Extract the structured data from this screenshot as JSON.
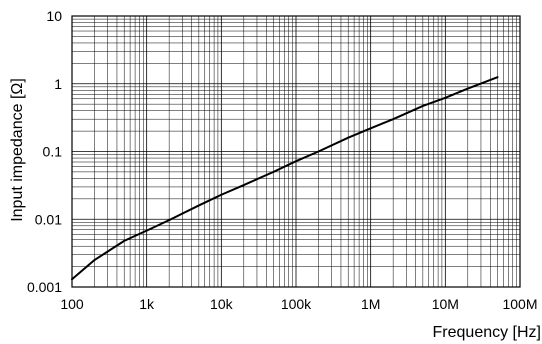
{
  "chart_data": {
    "type": "line",
    "title": "",
    "xlabel": "Frequency [Hz]",
    "ylabel": "Input impedance [Ω]",
    "xscale": "log",
    "yscale": "log",
    "xlim": [
      100,
      100000000
    ],
    "ylim": [
      0.001,
      10
    ],
    "grid": true,
    "x_tick_labels": [
      "100",
      "1k",
      "10k",
      "100k",
      "1M",
      "10M",
      "100M"
    ],
    "y_tick_labels": [
      "0.001",
      "0.01",
      "0.1",
      "1",
      "10"
    ],
    "series": [
      {
        "values": [
          [
            100,
            0.0013
          ],
          [
            200,
            0.0025
          ],
          [
            500,
            0.0048
          ],
          [
            1000,
            0.0068
          ],
          [
            2000,
            0.0097
          ],
          [
            5000,
            0.016
          ],
          [
            10000,
            0.023
          ],
          [
            20000,
            0.032
          ],
          [
            50000,
            0.05
          ],
          [
            100000,
            0.072
          ],
          [
            200000,
            0.1
          ],
          [
            500000,
            0.16
          ],
          [
            1000000,
            0.22
          ],
          [
            2000000,
            0.3
          ],
          [
            5000000,
            0.47
          ],
          [
            10000000,
            0.62
          ],
          [
            20000000,
            0.85
          ],
          [
            50000000,
            1.25
          ]
        ]
      }
    ]
  }
}
